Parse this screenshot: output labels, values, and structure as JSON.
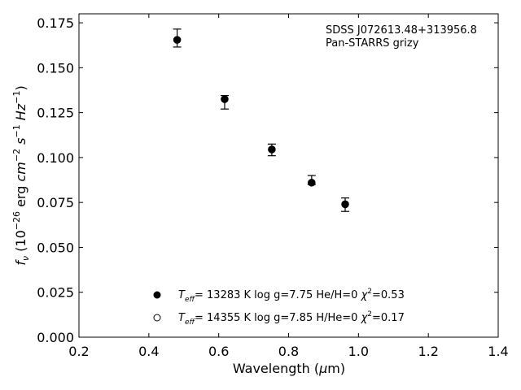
{
  "chart_data": {
    "type": "scatter",
    "xlabel": {
      "pre": "Wavelength (",
      "mu": "μ",
      "post": "m)"
    },
    "ylabel": {
      "f": "f",
      "nu": "ν",
      "open": " (10",
      "exp1": "−26",
      "erg": " erg ",
      "cm": "cm",
      "exp2": "−2",
      "s": " s",
      "exp3": "−1",
      "hz": " Hz",
      "exp4": "−1",
      "close": ")"
    },
    "xlim": [
      0.2,
      1.4
    ],
    "ylim": [
      0.0,
      0.18
    ],
    "xticks": [
      "0.2",
      "0.4",
      "0.6",
      "0.8",
      "1.0",
      "1.2",
      "1.4"
    ],
    "yticks": [
      "0.000",
      "0.025",
      "0.050",
      "0.075",
      "0.100",
      "0.125",
      "0.150",
      "0.175"
    ],
    "annotation": [
      "SDSS J072613.48+313956.8",
      "Pan-STARRS grizy"
    ],
    "observed": {
      "x": [
        0.481,
        0.617,
        0.752,
        0.866,
        0.962
      ],
      "y": [
        0.166,
        0.132,
        0.1045,
        0.0865,
        0.0735
      ],
      "yerr_low": [
        0.0045,
        0.005,
        0.0035,
        0.0015,
        0.0035
      ],
      "yerr_high": [
        0.0055,
        0.0025,
        0.003,
        0.0035,
        0.004
      ]
    },
    "series": [
      {
        "marker": "filled",
        "x": [
          0.481,
          0.617,
          0.752,
          0.866,
          0.962
        ],
        "y": [
          0.1655,
          0.1325,
          0.1045,
          0.086,
          0.074
        ],
        "legend": {
          "T": "T",
          "eff": "eff",
          "text": "= 13283 K  log g=7.75  He/H=0  ",
          "chi": "χ",
          "two": "2",
          "val": "=0.53"
        }
      },
      {
        "marker": "open",
        "x": [
          0.481,
          0.617,
          0.752,
          0.866,
          0.962
        ],
        "y": [
          0.1655,
          0.1325,
          0.1045,
          0.086,
          0.074
        ],
        "legend": {
          "T": "T",
          "eff": "eff",
          "text": "= 14355 K  log g=7.85  H/He=0  ",
          "chi": "χ",
          "two": "2",
          "val": "=0.17"
        }
      }
    ],
    "legend_position": "lower-center",
    "grid": false
  }
}
